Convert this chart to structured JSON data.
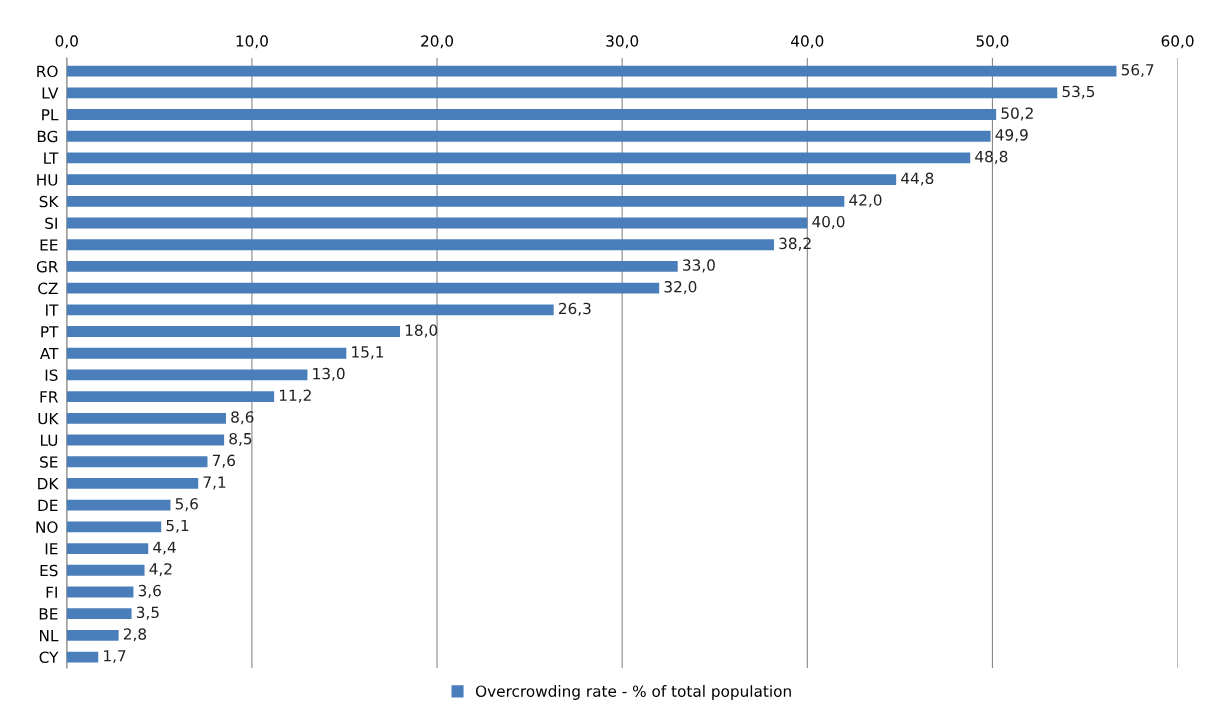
{
  "chart_data": {
    "type": "bar",
    "orientation": "horizontal",
    "categories": [
      "RO",
      "LV",
      "PL",
      "BG",
      "LT",
      "HU",
      "SK",
      "SI",
      "EE",
      "GR",
      "CZ",
      "IT",
      "PT",
      "AT",
      "IS",
      "FR",
      "UK",
      "LU",
      "SE",
      "DK",
      "DE",
      "NO",
      "IE",
      "ES",
      "FI",
      "BE",
      "NL",
      "CY"
    ],
    "series": [
      {
        "name": "Overcrowding rate - % of total population",
        "color": "#4a7ebb",
        "values": [
          56.7,
          53.5,
          50.2,
          49.9,
          48.8,
          44.8,
          42.0,
          40.0,
          38.2,
          33.0,
          32.0,
          26.3,
          18.0,
          15.1,
          13.0,
          11.2,
          8.6,
          8.5,
          7.6,
          7.1,
          5.6,
          5.1,
          4.4,
          4.2,
          3.6,
          3.5,
          2.8,
          1.7
        ],
        "value_labels": [
          "56,7",
          "53,5",
          "50,2",
          "49,9",
          "48,8",
          "44,8",
          "42,0",
          "40,0",
          "38,2",
          "33,0",
          "32,0",
          "26,3",
          "18,0",
          "15,1",
          "13,0",
          "11,2",
          "8,6",
          "8,5",
          "7,6",
          "7,1",
          "5,6",
          "5,1",
          "4,4",
          "4,2",
          "3,6",
          "3,5",
          "2,8",
          "1,7"
        ]
      }
    ],
    "xlim": [
      0,
      60
    ],
    "xticks": [
      {
        "value": 0,
        "label": "0,0"
      },
      {
        "value": 10,
        "label": "10,0"
      },
      {
        "value": 20,
        "label": "20,0"
      },
      {
        "value": 30,
        "label": "30,0"
      },
      {
        "value": 40,
        "label": "40,0"
      },
      {
        "value": 50,
        "label": "50,0"
      },
      {
        "value": 60,
        "label": "60,0"
      }
    ],
    "grid": "x",
    "legend": "bottom"
  }
}
